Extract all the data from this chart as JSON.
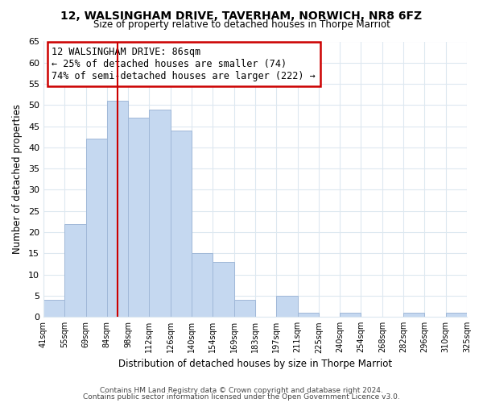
{
  "title": "12, WALSINGHAM DRIVE, TAVERHAM, NORWICH, NR8 6FZ",
  "subtitle": "Size of property relative to detached houses in Thorpe Marriot",
  "bar_color": "#c5d8f0",
  "bar_edge_color": "#a0b8d8",
  "bar_heights": [
    4,
    22,
    42,
    51,
    47,
    49,
    44,
    15,
    13,
    4,
    0,
    5,
    1,
    0,
    1,
    0,
    0,
    1,
    0,
    1
  ],
  "bin_labels": [
    "41sqm",
    "55sqm",
    "69sqm",
    "84sqm",
    "98sqm",
    "112sqm",
    "126sqm",
    "140sqm",
    "154sqm",
    "169sqm",
    "183sqm",
    "197sqm",
    "211sqm",
    "225sqm",
    "240sqm",
    "254sqm",
    "268sqm",
    "282sqm",
    "296sqm",
    "310sqm",
    "325sqm"
  ],
  "xlabel": "Distribution of detached houses by size in Thorpe Marriot",
  "ylabel": "Number of detached properties",
  "ylim": [
    0,
    65
  ],
  "yticks": [
    0,
    5,
    10,
    15,
    20,
    25,
    30,
    35,
    40,
    45,
    50,
    55,
    60,
    65
  ],
  "vline_x": 3.5,
  "vline_color": "#cc0000",
  "annotation_title": "12 WALSINGHAM DRIVE: 86sqm",
  "annotation_line1": "← 25% of detached houses are smaller (74)",
  "annotation_line2": "74% of semi-detached houses are larger (222) →",
  "annotation_box_color": "#ffffff",
  "annotation_box_edge_color": "#cc0000",
  "footer1": "Contains HM Land Registry data © Crown copyright and database right 2024.",
  "footer2": "Contains public sector information licensed under the Open Government Licence v3.0.",
  "background_color": "#ffffff",
  "grid_color": "#dde8f0"
}
